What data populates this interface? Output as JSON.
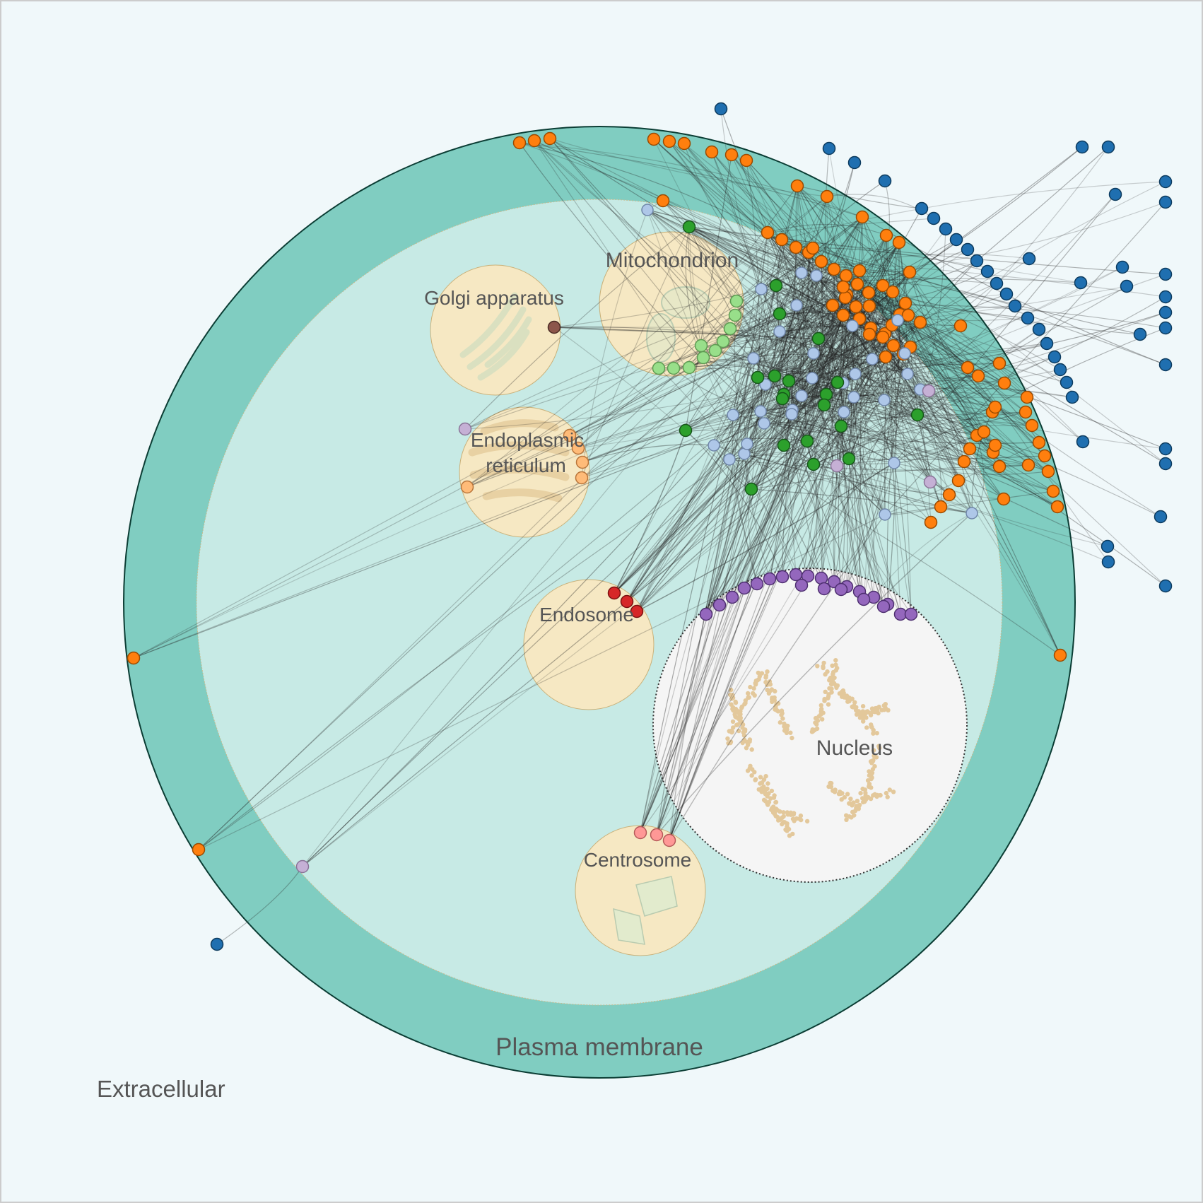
{
  "labels": {
    "extracellular": "Extracellular",
    "plasma_membrane": "Plasma membrane",
    "golgi": "Golgi apparatus",
    "mitochondrion": "Mitochondrion",
    "er_line1": "Endoplasmic",
    "er_line2": "reticulum",
    "endosome": "Endosome",
    "centrosome": "Centrosome",
    "nucleus": "Nucleus"
  },
  "colors": {
    "background": "#f0f8fa",
    "membrane": "#80cdc1",
    "cytoplasm": "#c7eae5",
    "organelle": "#f6e8c3",
    "nucleus": "#f5f5f5",
    "extracellular_node": "#1f6fb0",
    "membrane_node": "#ff7f0e",
    "cytosol_node_light": "#aec7e8",
    "cytosol_node_green": "#2ca02c",
    "mito_node": "#98df8a",
    "er_node": "#ffbb78",
    "golgi_node": "#8c564b",
    "endosome_node": "#d62728",
    "centrosome_node": "#ff9896",
    "nucleus_node": "#9467bd",
    "misc_node": "#c5b0d5"
  }
}
